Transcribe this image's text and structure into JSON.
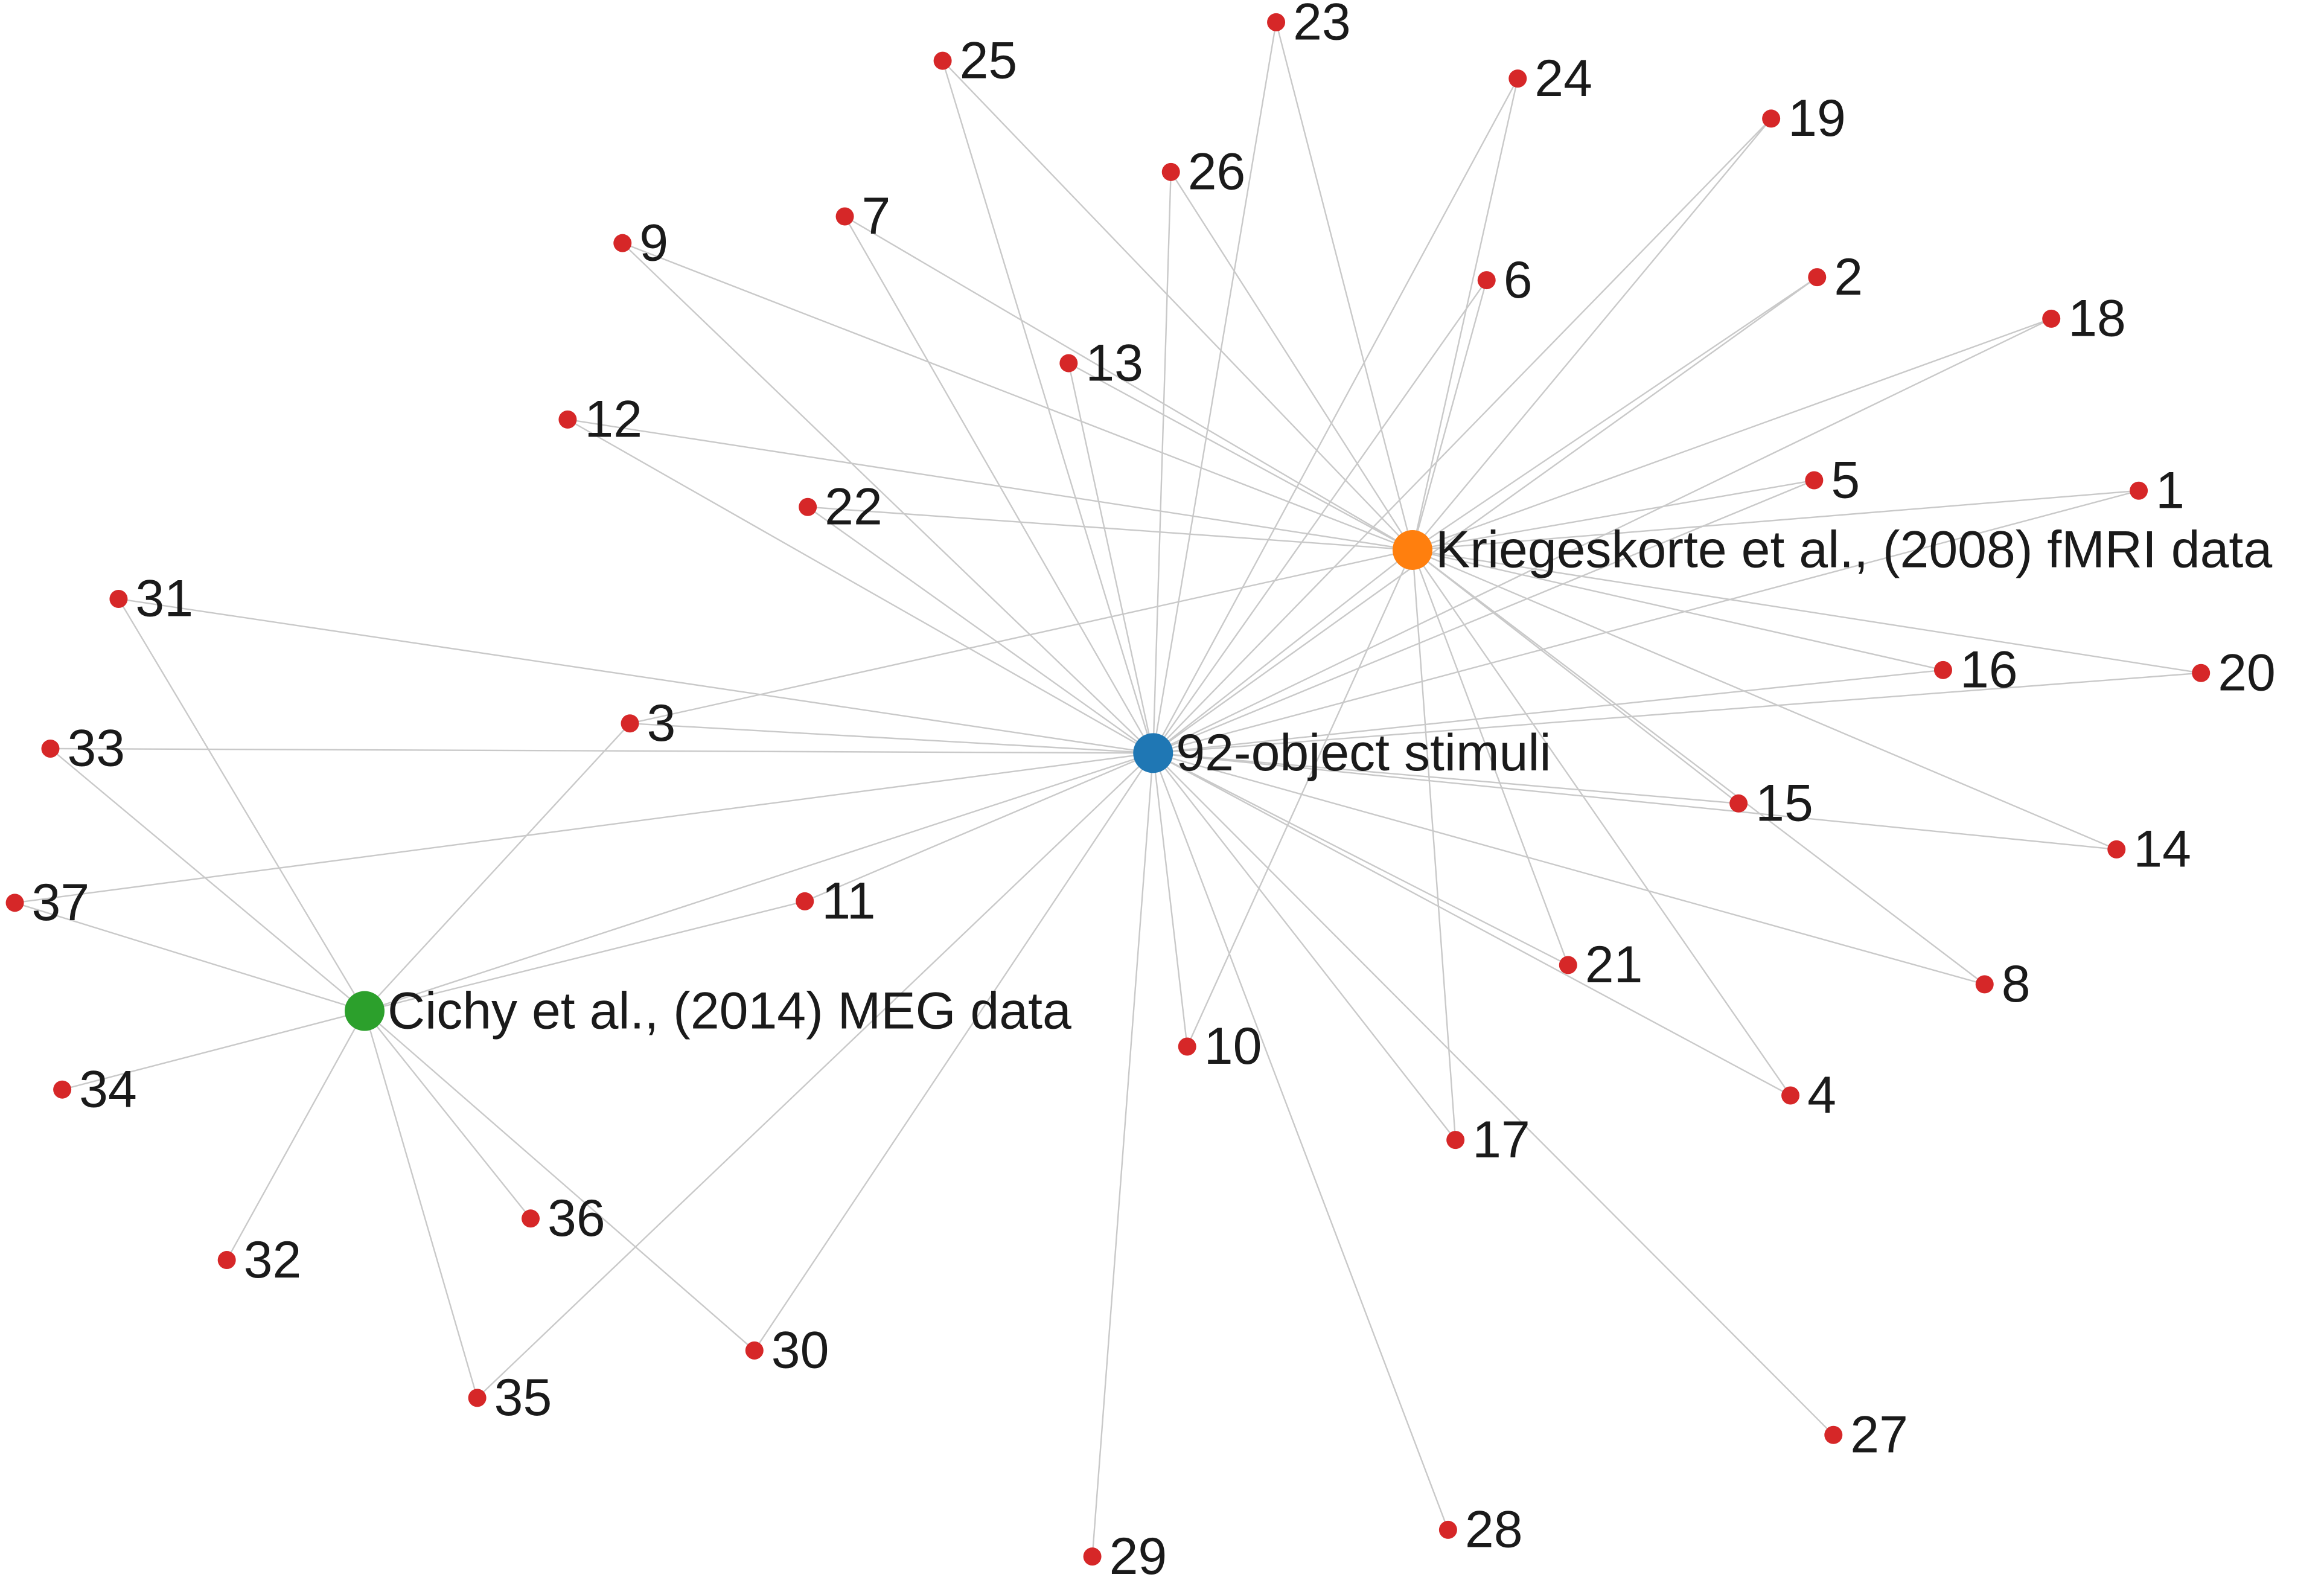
{
  "colors": {
    "edge": "#c9c9c9",
    "number_node": "#d62728",
    "stimuli_hub": "#1f77b4",
    "fmri_hub": "#ff7f0e",
    "meg_hub": "#2ca02c"
  },
  "hubs": [
    {
      "id": "stimuli",
      "label": "92-object stimuli",
      "color": "#1f77b4"
    },
    {
      "id": "fmri",
      "label": "Kriegeskorte et al., (2008) fMRI data",
      "color": "#ff7f0e"
    },
    {
      "id": "meg",
      "label": "Cichy et al., (2014) MEG data",
      "color": "#2ca02c"
    }
  ],
  "nodes": [
    "1",
    "2",
    "3",
    "4",
    "5",
    "6",
    "7",
    "8",
    "9",
    "10",
    "11",
    "12",
    "13",
    "14",
    "15",
    "16",
    "17",
    "18",
    "19",
    "20",
    "21",
    "22",
    "23",
    "24",
    "25",
    "26",
    "27",
    "28",
    "29",
    "30",
    "31",
    "32",
    "33",
    "34",
    "35",
    "36",
    "37"
  ],
  "edges": [
    [
      "stimuli",
      "1"
    ],
    [
      "stimuli",
      "2"
    ],
    [
      "stimuli",
      "3"
    ],
    [
      "stimuli",
      "4"
    ],
    [
      "stimuli",
      "5"
    ],
    [
      "stimuli",
      "6"
    ],
    [
      "stimuli",
      "7"
    ],
    [
      "stimuli",
      "8"
    ],
    [
      "stimuli",
      "9"
    ],
    [
      "stimuli",
      "10"
    ],
    [
      "stimuli",
      "11"
    ],
    [
      "stimuli",
      "12"
    ],
    [
      "stimuli",
      "13"
    ],
    [
      "stimuli",
      "14"
    ],
    [
      "stimuli",
      "15"
    ],
    [
      "stimuli",
      "16"
    ],
    [
      "stimuli",
      "17"
    ],
    [
      "stimuli",
      "18"
    ],
    [
      "stimuli",
      "19"
    ],
    [
      "stimuli",
      "20"
    ],
    [
      "stimuli",
      "21"
    ],
    [
      "stimuli",
      "22"
    ],
    [
      "stimuli",
      "23"
    ],
    [
      "stimuli",
      "24"
    ],
    [
      "stimuli",
      "25"
    ],
    [
      "stimuli",
      "26"
    ],
    [
      "stimuli",
      "27"
    ],
    [
      "stimuli",
      "28"
    ],
    [
      "stimuli",
      "29"
    ],
    [
      "stimuli",
      "30"
    ],
    [
      "stimuli",
      "31"
    ],
    [
      "stimuli",
      "33"
    ],
    [
      "stimuli",
      "35"
    ],
    [
      "stimuli",
      "37"
    ],
    [
      "stimuli",
      "fmri"
    ],
    [
      "stimuli",
      "meg"
    ],
    [
      "fmri",
      "1"
    ],
    [
      "fmri",
      "2"
    ],
    [
      "fmri",
      "3"
    ],
    [
      "fmri",
      "4"
    ],
    [
      "fmri",
      "5"
    ],
    [
      "fmri",
      "6"
    ],
    [
      "fmri",
      "7"
    ],
    [
      "fmri",
      "8"
    ],
    [
      "fmri",
      "9"
    ],
    [
      "fmri",
      "10"
    ],
    [
      "fmri",
      "12"
    ],
    [
      "fmri",
      "13"
    ],
    [
      "fmri",
      "14"
    ],
    [
      "fmri",
      "15"
    ],
    [
      "fmri",
      "16"
    ],
    [
      "fmri",
      "17"
    ],
    [
      "fmri",
      "18"
    ],
    [
      "fmri",
      "19"
    ],
    [
      "fmri",
      "20"
    ],
    [
      "fmri",
      "21"
    ],
    [
      "fmri",
      "22"
    ],
    [
      "fmri",
      "23"
    ],
    [
      "fmri",
      "24"
    ],
    [
      "fmri",
      "25"
    ],
    [
      "fmri",
      "26"
    ],
    [
      "meg",
      "3"
    ],
    [
      "meg",
      "11"
    ],
    [
      "meg",
      "30"
    ],
    [
      "meg",
      "31"
    ],
    [
      "meg",
      "32"
    ],
    [
      "meg",
      "33"
    ],
    [
      "meg",
      "34"
    ],
    [
      "meg",
      "35"
    ],
    [
      "meg",
      "36"
    ],
    [
      "meg",
      "37"
    ]
  ]
}
